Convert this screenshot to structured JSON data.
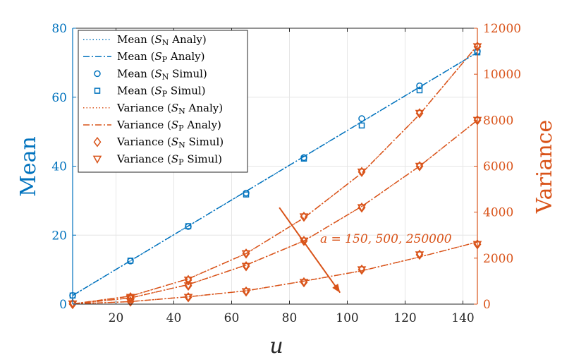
{
  "colors": {
    "mean": "#0072BD",
    "variance": "#D95319",
    "grid": "#e6e6e6",
    "axis": "#262626"
  },
  "chart_data": {
    "type": "line",
    "xlabel": "u",
    "ylabel_left": "Mean",
    "ylabel_right": "Variance",
    "xlim": [
      5,
      145
    ],
    "ylim_left": [
      0,
      80
    ],
    "ylim_right": [
      0,
      12000
    ],
    "x_ticks": [
      20,
      40,
      60,
      80,
      100,
      120,
      140
    ],
    "y_left_ticks": [
      0,
      20,
      40,
      60,
      80
    ],
    "y_right_ticks": [
      0,
      2000,
      4000,
      6000,
      8000,
      10000,
      12000
    ],
    "grid": true,
    "legend_position": "top-left",
    "mean_line": {
      "x": [
        5,
        145
      ],
      "y": [
        2.5,
        73
      ]
    },
    "mean_simul_N": {
      "x": [
        5,
        25,
        45,
        65,
        85,
        105,
        125,
        145
      ],
      "y": [
        2.5,
        12.5,
        22.5,
        32.2,
        42.5,
        53.8,
        63.3,
        73.3
      ]
    },
    "mean_simul_P": {
      "x": [
        5,
        25,
        45,
        65,
        85,
        105,
        125,
        145
      ],
      "y": [
        2.5,
        12.6,
        22.6,
        31.8,
        42.2,
        51.8,
        62.0,
        73.0
      ]
    },
    "variance_series": [
      {
        "name": "a = 150",
        "analy_x": [
          5,
          25,
          45,
          65,
          85,
          105,
          125,
          145
        ],
        "analy_y": [
          10,
          350,
          1100,
          2200,
          3750,
          5700,
          8250,
          11250
        ],
        "simul_x": [
          5,
          25,
          45,
          65,
          85,
          105,
          125,
          145
        ],
        "simul_y": [
          10,
          300,
          1050,
          2200,
          3800,
          5750,
          8300,
          11200
        ]
      },
      {
        "name": "a = 500",
        "analy_x": [
          5,
          25,
          45,
          65,
          85,
          105,
          125,
          145
        ],
        "analy_y": [
          10,
          270,
          850,
          1700,
          2750,
          4250,
          6000,
          8000
        ],
        "simul_x": [
          5,
          25,
          45,
          65,
          85,
          105,
          125,
          145
        ],
        "simul_y": [
          10,
          250,
          800,
          1650,
          2750,
          4200,
          6000,
          8000
        ]
      },
      {
        "name": "a = 250000",
        "analy_x": [
          5,
          25,
          45,
          65,
          85,
          105,
          125,
          145
        ],
        "analy_y": [
          5,
          110,
          320,
          580,
          1000,
          1450,
          2050,
          2700
        ],
        "simul_x": [
          5,
          25,
          45,
          65,
          85,
          105,
          125,
          145
        ],
        "simul_y": [
          5,
          110,
          300,
          550,
          950,
          1500,
          2150,
          2600
        ]
      }
    ],
    "annotation": {
      "text": "a = 150, 500, 250000",
      "arrow_from": [
        76.5,
        4200
      ],
      "arrow_to": [
        97.5,
        500
      ]
    },
    "legend": [
      {
        "label": "Mean (S_N Analy)",
        "main": "Mean (",
        "s": "S",
        "sub": "N",
        "rest": " Analy)",
        "style": "dotted",
        "color": "mean"
      },
      {
        "label": "Mean (S_P Analy)",
        "main": "Mean (",
        "s": "S",
        "sub": "P",
        "rest": " Analy)",
        "style": "dashdot",
        "color": "mean"
      },
      {
        "label": "Mean (S_N Simul)",
        "main": "Mean (",
        "s": "S",
        "sub": "N",
        "rest": " Simul)",
        "style": "circle",
        "color": "mean"
      },
      {
        "label": "Mean (S_P Simul)",
        "main": "Mean (",
        "s": "S",
        "sub": "P",
        "rest": " Simul)",
        "style": "square",
        "color": "mean"
      },
      {
        "label": "Variance (S_N Analy)",
        "main": "Variance (",
        "s": "S",
        "sub": "N",
        "rest": " Analy)",
        "style": "dotted",
        "color": "variance"
      },
      {
        "label": "Variance (S_P Analy)",
        "main": "Variance (",
        "s": "S",
        "sub": "P",
        "rest": " Analy)",
        "style": "dashdot",
        "color": "variance"
      },
      {
        "label": "Variance (S_N Simul)",
        "main": "Variance (",
        "s": "S",
        "sub": "N",
        "rest": " Simul)",
        "style": "diamond",
        "color": "variance"
      },
      {
        "label": "Variance (S_P Simul)",
        "main": "Variance (",
        "s": "S",
        "sub": "P",
        "rest": " Simul)",
        "style": "triangle",
        "color": "variance"
      }
    ]
  }
}
